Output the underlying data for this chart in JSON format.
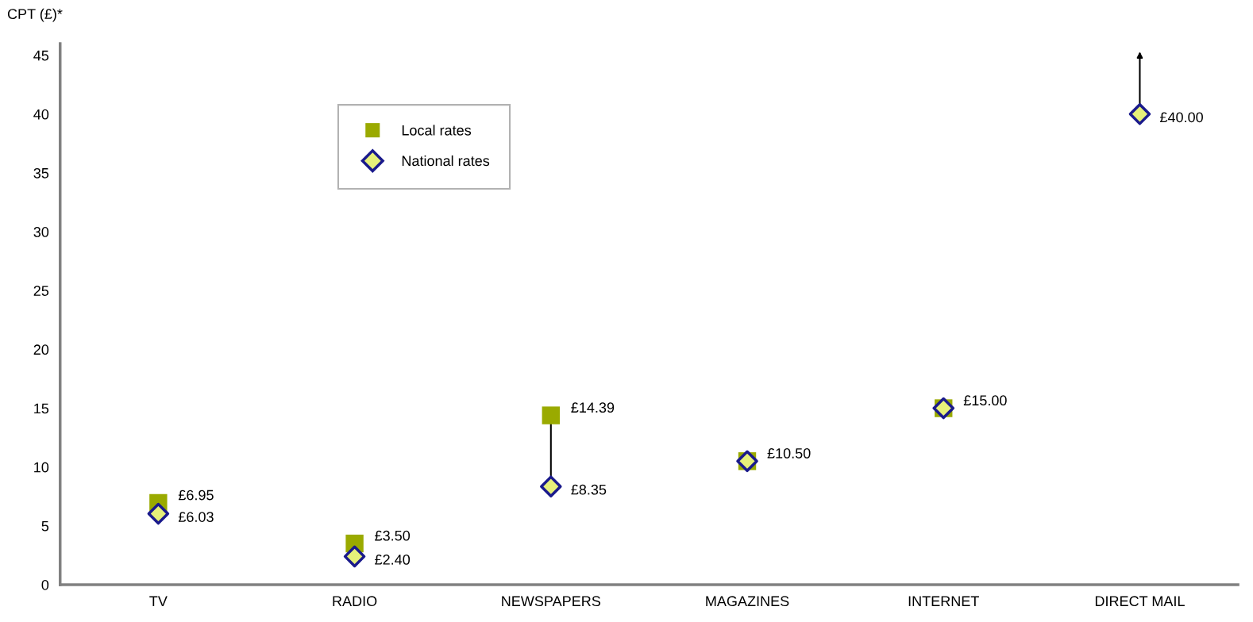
{
  "chart_data": {
    "type": "scatter",
    "ylabel": "CPT (£)*",
    "categories": [
      "TV",
      "RADIO",
      "NEWSPAPERS",
      "MAGAZINES",
      "INTERNET",
      "DIRECT MAIL"
    ],
    "series": [
      {
        "name": "Local rates",
        "color": "#9aaa00",
        "marker": "square",
        "values": [
          6.95,
          3.5,
          14.39,
          10.5,
          15.0,
          null
        ],
        "value_labels": [
          "£6.95",
          "£3.50",
          "£14.39",
          "£10.50",
          "£15.00",
          null
        ]
      },
      {
        "name": "National rates",
        "color": "#e6f07a",
        "marker": "diamond",
        "values": [
          6.03,
          2.4,
          8.35,
          10.5,
          15.0,
          40.0
        ],
        "value_labels": [
          "£6.03",
          "£2.40",
          "£8.35",
          null,
          null,
          "£40.00"
        ]
      }
    ],
    "ylim": [
      0,
      46
    ],
    "yticks": [
      0,
      5,
      10,
      15,
      20,
      25,
      30,
      35,
      40,
      45
    ],
    "grid": false,
    "legend": "top left"
  }
}
